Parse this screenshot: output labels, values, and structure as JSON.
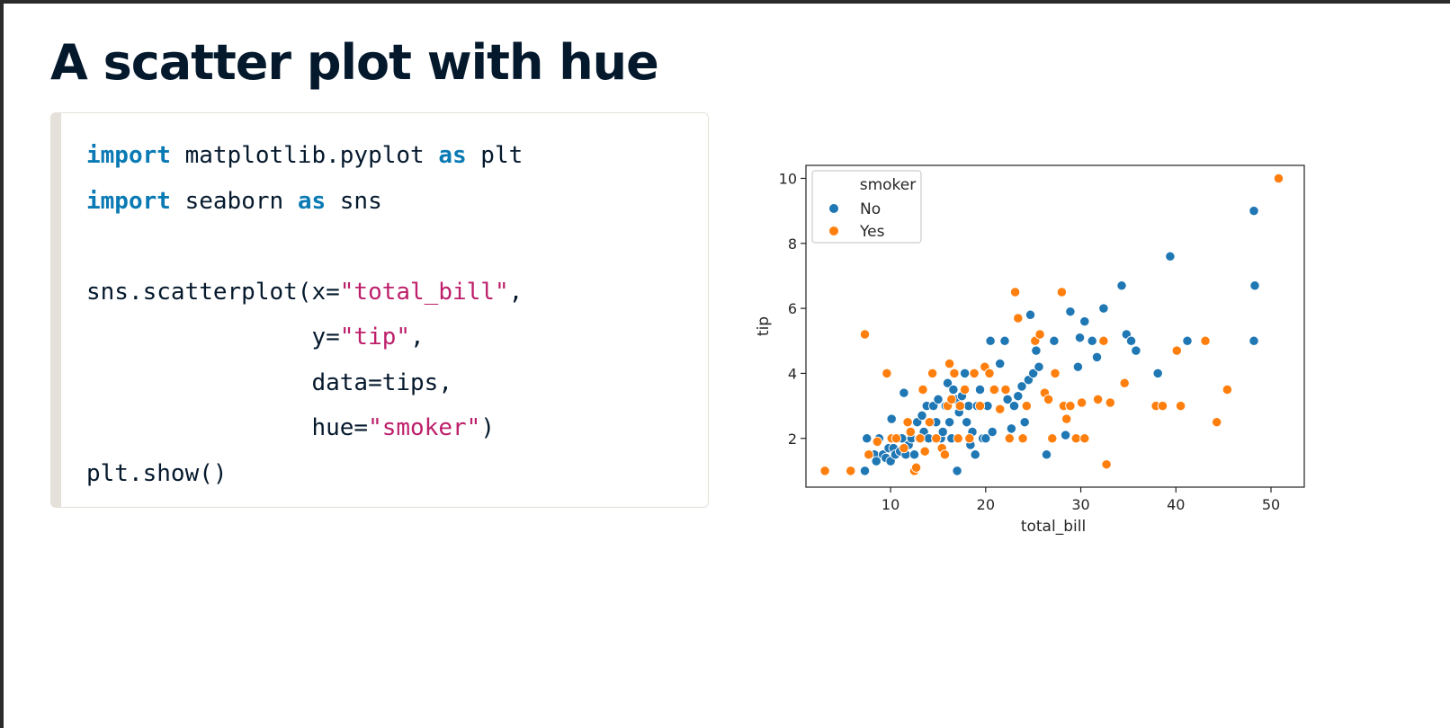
{
  "slide": {
    "title": "A scatter plot with hue"
  },
  "code": {
    "lines": [
      [
        {
          "t": "import",
          "c": "kw"
        },
        {
          "t": " matplotlib.pyplot ",
          "c": ""
        },
        {
          "t": "as",
          "c": "kw"
        },
        {
          "t": " plt",
          "c": ""
        }
      ],
      [
        {
          "t": "import",
          "c": "kw"
        },
        {
          "t": " seaborn ",
          "c": ""
        },
        {
          "t": "as",
          "c": "kw"
        },
        {
          "t": " sns",
          "c": ""
        }
      ],
      [
        {
          "t": " ",
          "c": ""
        }
      ],
      [
        {
          "t": "sns.scatterplot(x=",
          "c": ""
        },
        {
          "t": "\"total_bill\"",
          "c": "str"
        },
        {
          "t": ",",
          "c": ""
        }
      ],
      [
        {
          "t": "                y=",
          "c": ""
        },
        {
          "t": "\"tip\"",
          "c": "str"
        },
        {
          "t": ",",
          "c": ""
        }
      ],
      [
        {
          "t": "                data=tips,",
          "c": ""
        }
      ],
      [
        {
          "t": "                hue=",
          "c": ""
        },
        {
          "t": "\"smoker\"",
          "c": "str"
        },
        {
          "t": ")",
          "c": ""
        }
      ],
      [
        {
          "t": "plt.show()",
          "c": ""
        }
      ]
    ]
  },
  "chart_data": {
    "type": "scatter",
    "xlabel": "total_bill",
    "ylabel": "tip",
    "xlim": [
      1.1,
      53.5
    ],
    "ylim": [
      0.5,
      10.4
    ],
    "xticks": [
      10,
      20,
      30,
      40,
      50
    ],
    "yticks": [
      2,
      4,
      6,
      8,
      10
    ],
    "grid": false,
    "legend": {
      "title": "smoker",
      "placement": "top-left"
    },
    "series": [
      {
        "name": "No",
        "color": "#1f77b4",
        "points": [
          [
            7.3,
            1.0
          ],
          [
            7.5,
            2.0
          ],
          [
            8.3,
            1.5
          ],
          [
            8.5,
            1.3
          ],
          [
            8.8,
            2.0
          ],
          [
            9.2,
            1.5
          ],
          [
            9.5,
            1.4
          ],
          [
            9.8,
            1.7
          ],
          [
            10.0,
            1.3
          ],
          [
            10.1,
            2.6
          ],
          [
            10.3,
            1.7
          ],
          [
            10.5,
            1.5
          ],
          [
            10.8,
            2.0
          ],
          [
            11.0,
            1.6
          ],
          [
            11.2,
            2.0
          ],
          [
            11.4,
            3.4
          ],
          [
            11.6,
            1.5
          ],
          [
            11.9,
            1.8
          ],
          [
            12.2,
            2.0
          ],
          [
            12.5,
            1.5
          ],
          [
            12.8,
            2.5
          ],
          [
            13.0,
            2.0
          ],
          [
            13.3,
            2.7
          ],
          [
            13.5,
            2.2
          ],
          [
            13.8,
            3.0
          ],
          [
            14.0,
            2.0
          ],
          [
            14.5,
            3.0
          ],
          [
            14.8,
            2.5
          ],
          [
            15.0,
            3.2
          ],
          [
            15.3,
            2.0
          ],
          [
            15.5,
            2.2
          ],
          [
            15.8,
            3.0
          ],
          [
            16.0,
            3.7
          ],
          [
            16.2,
            2.5
          ],
          [
            16.4,
            2.0
          ],
          [
            16.6,
            3.5
          ],
          [
            16.9,
            3.2
          ],
          [
            17.0,
            1.0
          ],
          [
            17.2,
            2.8
          ],
          [
            17.5,
            3.3
          ],
          [
            17.8,
            4.0
          ],
          [
            18.0,
            2.5
          ],
          [
            18.2,
            3.0
          ],
          [
            18.4,
            1.8
          ],
          [
            18.6,
            2.2
          ],
          [
            18.9,
            1.5
          ],
          [
            19.1,
            3.0
          ],
          [
            19.4,
            3.5
          ],
          [
            19.7,
            2.0
          ],
          [
            20.0,
            2.0
          ],
          [
            20.2,
            3.0
          ],
          [
            20.5,
            5.0
          ],
          [
            20.7,
            2.2
          ],
          [
            21.0,
            3.5
          ],
          [
            21.5,
            4.3
          ],
          [
            22.0,
            5.0
          ],
          [
            22.3,
            3.2
          ],
          [
            22.7,
            2.3
          ],
          [
            23.0,
            3.0
          ],
          [
            23.4,
            3.3
          ],
          [
            23.8,
            3.6
          ],
          [
            24.1,
            2.5
          ],
          [
            24.5,
            3.8
          ],
          [
            24.7,
            5.8
          ],
          [
            25.0,
            4.0
          ],
          [
            25.3,
            4.7
          ],
          [
            25.6,
            4.2
          ],
          [
            26.4,
            1.5
          ],
          [
            27.2,
            5.0
          ],
          [
            28.4,
            2.1
          ],
          [
            28.9,
            5.9
          ],
          [
            29.7,
            4.2
          ],
          [
            29.9,
            5.1
          ],
          [
            30.4,
            5.6
          ],
          [
            31.2,
            5.0
          ],
          [
            31.7,
            4.5
          ],
          [
            32.4,
            6.0
          ],
          [
            34.3,
            6.7
          ],
          [
            34.8,
            5.2
          ],
          [
            35.3,
            5.0
          ],
          [
            35.8,
            4.7
          ],
          [
            38.1,
            4.0
          ],
          [
            39.4,
            7.6
          ],
          [
            41.2,
            5.0
          ],
          [
            48.2,
            9.0
          ],
          [
            48.3,
            6.7
          ],
          [
            48.2,
            5.0
          ]
        ]
      },
      {
        "name": "Yes",
        "color": "#ff7f0e",
        "points": [
          [
            3.1,
            1.0
          ],
          [
            5.8,
            1.0
          ],
          [
            7.3,
            5.2
          ],
          [
            7.7,
            1.5
          ],
          [
            8.6,
            1.9
          ],
          [
            9.6,
            4.0
          ],
          [
            10.1,
            2.0
          ],
          [
            10.6,
            2.0
          ],
          [
            11.4,
            1.7
          ],
          [
            11.8,
            2.5
          ],
          [
            12.1,
            2.2
          ],
          [
            12.5,
            1.0
          ],
          [
            12.7,
            1.1
          ],
          [
            13.1,
            2.0
          ],
          [
            13.4,
            3.5
          ],
          [
            13.6,
            1.6
          ],
          [
            14.1,
            2.5
          ],
          [
            14.4,
            4.0
          ],
          [
            14.8,
            2.0
          ],
          [
            15.4,
            1.7
          ],
          [
            15.7,
            1.5
          ],
          [
            16.0,
            3.0
          ],
          [
            16.2,
            4.3
          ],
          [
            16.4,
            3.2
          ],
          [
            16.7,
            4.0
          ],
          [
            17.1,
            2.0
          ],
          [
            17.3,
            3.0
          ],
          [
            17.8,
            3.5
          ],
          [
            18.3,
            2.0
          ],
          [
            18.8,
            4.0
          ],
          [
            19.4,
            3.0
          ],
          [
            19.9,
            4.2
          ],
          [
            20.4,
            4.0
          ],
          [
            20.9,
            3.5
          ],
          [
            21.5,
            2.9
          ],
          [
            22.1,
            3.5
          ],
          [
            22.5,
            2.0
          ],
          [
            23.1,
            6.5
          ],
          [
            23.4,
            5.7
          ],
          [
            23.9,
            2.0
          ],
          [
            24.3,
            3.0
          ],
          [
            25.2,
            5.0
          ],
          [
            25.7,
            5.2
          ],
          [
            26.2,
            3.4
          ],
          [
            26.6,
            3.2
          ],
          [
            27.0,
            2.0
          ],
          [
            27.3,
            4.0
          ],
          [
            28.0,
            6.5
          ],
          [
            28.2,
            3.0
          ],
          [
            28.5,
            2.6
          ],
          [
            28.9,
            3.0
          ],
          [
            29.5,
            2.0
          ],
          [
            30.1,
            3.1
          ],
          [
            30.4,
            2.0
          ],
          [
            31.8,
            3.2
          ],
          [
            32.4,
            5.0
          ],
          [
            32.7,
            1.2
          ],
          [
            33.1,
            3.1
          ],
          [
            34.6,
            3.7
          ],
          [
            37.9,
            3.0
          ],
          [
            38.6,
            3.0
          ],
          [
            40.1,
            4.7
          ],
          [
            40.5,
            3.0
          ],
          [
            43.1,
            5.0
          ],
          [
            44.3,
            2.5
          ],
          [
            45.4,
            3.5
          ],
          [
            50.8,
            10.0
          ]
        ]
      }
    ]
  }
}
